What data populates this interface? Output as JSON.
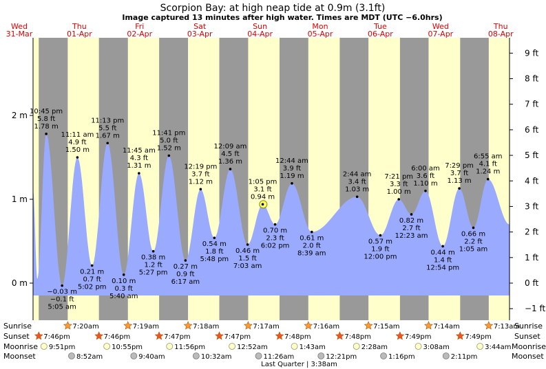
{
  "title": "Scorpion Bay: at high  neap tide at 0.9m (3.1ft)",
  "subtitle": "Image captured 13 minutes after high water. Times are MDT (UTC −6.0hrs)",
  "colors": {
    "day": "#ffffcc",
    "night": "#999999",
    "water": "#99aaff",
    "weekday": "#dd0000",
    "sun": "#ff9933",
    "moon_rise": "#ffffcc",
    "moon_set": "#bbbbbb"
  },
  "chart_data": {
    "type": "area",
    "title": "Scorpion Bay: at high  neap tide at 0.9m (3.1ft)",
    "x_unit": "hours since 00:00 Wed 31-Mar",
    "xlim": [
      17.5,
      207.5
    ],
    "ylim_m": [
      -0.42,
      2.92
    ],
    "left_ticks": [
      {
        "label": "0 m",
        "value": 0
      },
      {
        "label": "1 m",
        "value": 1
      },
      {
        "label": "2 m",
        "value": 2
      }
    ],
    "right_ticks": [
      {
        "label": "−1 ft",
        "value": -1
      },
      {
        "label": "0 ft",
        "value": 0
      },
      {
        "label": "1 ft",
        "value": 1
      },
      {
        "label": "2 ft",
        "value": 2
      },
      {
        "label": "3 ft",
        "value": 3
      },
      {
        "label": "4 ft",
        "value": 4
      },
      {
        "label": "5 ft",
        "value": 5
      },
      {
        "label": "6 ft",
        "value": 6
      },
      {
        "label": "7 ft",
        "value": 7
      },
      {
        "label": "8 ft",
        "value": 8
      },
      {
        "label": "9 ft",
        "value": 9
      }
    ],
    "days": [
      {
        "weekday": "Wed",
        "date": "31-Mar",
        "t": 12
      },
      {
        "weekday": "Thu",
        "date": "01-Apr",
        "t": 36
      },
      {
        "weekday": "Fri",
        "date": "02-Apr",
        "t": 60
      },
      {
        "weekday": "Sat",
        "date": "03-Apr",
        "t": 84
      },
      {
        "weekday": "Sun",
        "date": "04-Apr",
        "t": 108
      },
      {
        "weekday": "Mon",
        "date": "05-Apr",
        "t": 132
      },
      {
        "weekday": "Tue",
        "date": "06-Apr",
        "t": 156
      },
      {
        "weekday": "Wed",
        "date": "07-Apr",
        "t": 180
      },
      {
        "weekday": "Thu",
        "date": "08-Apr",
        "t": 204
      }
    ],
    "nights": [
      [
        19.77,
        31.33
      ],
      [
        43.77,
        55.32
      ],
      [
        67.78,
        79.3
      ],
      [
        91.78,
        103.28
      ],
      [
        115.8,
        127.27
      ],
      [
        139.8,
        151.25
      ],
      [
        163.82,
        175.23
      ],
      [
        187.82,
        199.22
      ]
    ],
    "series_start": {
      "t": 17.5,
      "m": 1.1
    },
    "series_end": {
      "t": 207.5,
      "m": 0.7
    },
    "extremes": [
      {
        "t": 22.75,
        "m": 1.78,
        "type": "high",
        "time": "10:45 pm",
        "ft": "5.8 ft",
        "m_label": "1.78 m"
      },
      {
        "t": 29.08,
        "m": -0.03,
        "type": "low",
        "time": "5:05 am",
        "ft": "−0.1 ft",
        "m_label": "−0.03 m"
      },
      {
        "t": 35.18,
        "m": 1.5,
        "type": "high",
        "time": "11:11 am",
        "ft": "4.9 ft",
        "m_label": "1.50 m"
      },
      {
        "t": 41.03,
        "m": 0.21,
        "type": "low",
        "time": "5:02 pm",
        "ft": "0.7 ft",
        "m_label": "0.21 m"
      },
      {
        "t": 47.22,
        "m": 1.67,
        "type": "high",
        "time": "11:13 pm",
        "ft": "5.5 ft",
        "m_label": "1.67 m"
      },
      {
        "t": 53.67,
        "m": 0.1,
        "type": "low",
        "time": "5:40 am",
        "ft": "0.3 ft",
        "m_label": "0.10 m"
      },
      {
        "t": 59.75,
        "m": 1.31,
        "type": "high",
        "time": "11:45 am",
        "ft": "4.3 ft",
        "m_label": "1.31 m"
      },
      {
        "t": 65.45,
        "m": 0.38,
        "type": "low",
        "time": "5:27 pm",
        "ft": "1.2 ft",
        "m_label": "0.38 m"
      },
      {
        "t": 71.68,
        "m": 1.52,
        "type": "high",
        "time": "11:41 pm",
        "ft": "5.0 ft",
        "m_label": "1.52 m"
      },
      {
        "t": 78.28,
        "m": 0.27,
        "type": "low",
        "time": "6:17 am",
        "ft": "0.9 ft",
        "m_label": "0.27 m"
      },
      {
        "t": 84.32,
        "m": 1.12,
        "type": "high",
        "time": "12:19 pm",
        "ft": "3.7 ft",
        "m_label": "1.12 m"
      },
      {
        "t": 89.8,
        "m": 0.54,
        "type": "low",
        "time": "5:48 pm",
        "ft": "1.8 ft",
        "m_label": "0.54 m"
      },
      {
        "t": 96.15,
        "m": 1.36,
        "type": "high",
        "time": "12:09 am",
        "ft": "4.5 ft",
        "m_label": "1.36 m"
      },
      {
        "t": 103.05,
        "m": 0.46,
        "type": "low",
        "time": "7:03 am",
        "ft": "1.5 ft",
        "m_label": "0.46 m"
      },
      {
        "t": 109.08,
        "m": 0.94,
        "type": "high",
        "time": "1:05 pm",
        "ft": "3.1 ft",
        "m_label": "0.94 m"
      },
      {
        "t": 114.03,
        "m": 0.7,
        "type": "low",
        "time": "6:02 pm",
        "ft": "2.3 ft",
        "m_label": "0.70 m"
      },
      {
        "t": 120.73,
        "m": 1.19,
        "type": "high",
        "time": "12:44 am",
        "ft": "3.9 ft",
        "m_label": "1.19 m"
      },
      {
        "t": 128.65,
        "m": 0.61,
        "type": "low",
        "time": "8:39 am",
        "ft": "2.0 ft",
        "m_label": "0.61 m"
      },
      {
        "t": 146.73,
        "m": 1.03,
        "type": "high",
        "time": "2:44 am",
        "ft": "3.4 ft",
        "m_label": "1.03 m"
      },
      {
        "t": 156.0,
        "m": 0.57,
        "type": "low",
        "time": "12:00 pm",
        "ft": "1.9 ft",
        "m_label": "0.57 m"
      },
      {
        "t": 163.35,
        "m": 1.0,
        "type": "high",
        "time": "7:21 pm",
        "ft": "3.3 ft",
        "m_label": "1.00 m"
      },
      {
        "t": 168.38,
        "m": 0.82,
        "type": "low",
        "time": "12:23 am",
        "ft": "2.7 ft",
        "m_label": "0.82 m"
      },
      {
        "t": 174.0,
        "m": 1.1,
        "type": "high",
        "time": "6:00 am",
        "ft": "3.6 ft",
        "m_label": "1.10 m"
      },
      {
        "t": 180.9,
        "m": 0.44,
        "type": "low",
        "time": "12:54 pm",
        "ft": "1.4 ft",
        "m_label": "0.44 m"
      },
      {
        "t": 187.48,
        "m": 1.13,
        "type": "high",
        "time": "7:29 pm",
        "ft": "3.7 ft",
        "m_label": "1.13 m"
      },
      {
        "t": 193.08,
        "m": 0.66,
        "type": "low",
        "time": "1:05 am",
        "ft": "2.2 ft",
        "m_label": "0.66 m"
      },
      {
        "t": 198.92,
        "m": 1.24,
        "type": "high",
        "time": "6:55 am",
        "ft": "4.1 ft",
        "m_label": "1.24 m"
      }
    ],
    "current": {
      "t": 109.3,
      "m": 0.94
    }
  },
  "rows": {
    "sunrise_label": "Sunrise",
    "sunset_label": "Sunset",
    "moonrise_label": "Moonrise",
    "moonset_label": "Moonset"
  },
  "sunrise": [
    {
      "t": 31.33,
      "time": "7:20am"
    },
    {
      "t": 55.32,
      "time": "7:19am"
    },
    {
      "t": 79.3,
      "time": "7:18am"
    },
    {
      "t": 103.28,
      "time": "7:17am"
    },
    {
      "t": 127.27,
      "time": "7:16am"
    },
    {
      "t": 151.25,
      "time": "7:15am"
    },
    {
      "t": 175.23,
      "time": "7:14am"
    },
    {
      "t": 199.22,
      "time": "7:13am"
    }
  ],
  "sunset": [
    {
      "t": 19.77,
      "time": "7:46pm"
    },
    {
      "t": 43.77,
      "time": "7:46pm"
    },
    {
      "t": 67.78,
      "time": "7:47pm"
    },
    {
      "t": 91.78,
      "time": "7:47pm"
    },
    {
      "t": 115.8,
      "time": "7:48pm"
    },
    {
      "t": 139.8,
      "time": "7:48pm"
    },
    {
      "t": 163.82,
      "time": "7:49pm"
    },
    {
      "t": 187.82,
      "time": "7:49pm"
    }
  ],
  "moonrise": [
    {
      "t": 21.85,
      "time": "9:51pm"
    },
    {
      "t": 46.92,
      "time": "10:55pm"
    },
    {
      "t": 71.93,
      "time": "11:56pm"
    },
    {
      "t": 96.87,
      "time": "12:52am"
    },
    {
      "t": 121.72,
      "time": "1:43am"
    },
    {
      "t": 146.47,
      "time": "2:28am"
    },
    {
      "t": 171.13,
      "time": "3:08am"
    },
    {
      "t": 195.73,
      "time": "3:44am"
    }
  ],
  "moonset": [
    {
      "t": 32.87,
      "time": "8:52am"
    },
    {
      "t": 57.67,
      "time": "9:40am"
    },
    {
      "t": 82.53,
      "time": "10:32am"
    },
    {
      "t": 107.43,
      "time": "11:26am"
    },
    {
      "t": 132.35,
      "time": "12:21pm"
    },
    {
      "t": 157.27,
      "time": "1:16pm"
    },
    {
      "t": 182.18,
      "time": "2:11pm"
    }
  ],
  "moon_phase": {
    "t": 123.63,
    "text": "Last Quarter | 3:38am"
  }
}
